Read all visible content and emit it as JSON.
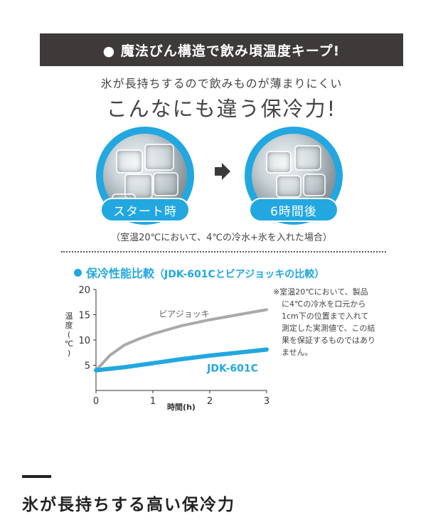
{
  "banner": {
    "text": "● 魔法びん構造で飲み頃温度キープ!"
  },
  "lead": {
    "text": "氷が長持ちするので飲みものが薄まりにくい"
  },
  "headline": {
    "text": "こんなにも違う保冷力!"
  },
  "photos": [
    {
      "label": "スタート時"
    },
    {
      "label": "6時間後"
    }
  ],
  "condition": {
    "text": "（室温20℃において、4℃の冷水+氷を入れた場合）"
  },
  "chart_title": {
    "main": "保冷性能比較",
    "sub": "（JDK-601Cとビアジョッキの比較）"
  },
  "note": {
    "lines": [
      "※室温20℃において、製品",
      "に4℃の冷水を口元から",
      "1cm下の位置まで入れて",
      "測定した実測値で、この結",
      "果を保証するものではあり",
      "ません。"
    ]
  },
  "footer": {
    "title": "氷が長持ちする高い保冷力"
  },
  "colors": {
    "accent": "#22a7e0",
    "banner": "#3d3a39",
    "jug_line": "#a9a9a9"
  },
  "chart_data": {
    "type": "line",
    "xlabel": "時間(h)",
    "ylabel": "温度(℃)",
    "xlim": [
      0,
      3
    ],
    "ylim": [
      0,
      20
    ],
    "x_ticks": [
      "0",
      "1",
      "2",
      "3"
    ],
    "y_ticks": [
      "5",
      "10",
      "15",
      "20"
    ],
    "grid": false,
    "series": [
      {
        "name": "ビアジョッキ",
        "color": "#a9a9a9",
        "x": [
          0,
          0.25,
          0.5,
          0.75,
          1.0,
          1.5,
          2.0,
          2.5,
          3.0
        ],
        "y": [
          4,
          7.0,
          9.0,
          10.2,
          11.2,
          12.8,
          14.0,
          15.0,
          16.0
        ]
      },
      {
        "name": "JDK-601C",
        "color": "#22a7e0",
        "x": [
          0,
          0.5,
          1.0,
          1.5,
          2.0,
          2.5,
          3.0
        ],
        "y": [
          4,
          4.6,
          5.4,
          6.2,
          6.9,
          7.5,
          8.1
        ]
      }
    ]
  }
}
